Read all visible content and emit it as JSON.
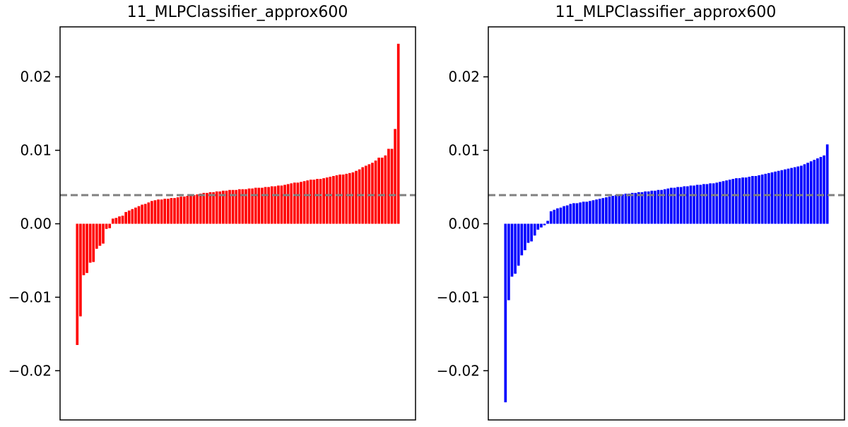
{
  "chart_data": [
    {
      "type": "bar",
      "title": "11_MLPClassifier_approx600",
      "xlabel": "",
      "ylabel": "",
      "ylim": [
        -0.0267,
        0.0268
      ],
      "yticks": [
        -0.02,
        -0.01,
        0.0,
        0.01,
        0.02
      ],
      "ytick_labels": [
        "−0.02",
        "−0.01",
        "0.00",
        "0.01",
        "0.02"
      ],
      "reference_line": 0.0039,
      "bar_color": "#ff0000",
      "reference_color": "#808080",
      "grid": false,
      "values": [
        -0.0165,
        -0.0126,
        -0.007,
        -0.0067,
        -0.0053,
        -0.0052,
        -0.0034,
        -0.003,
        -0.0027,
        -0.0007,
        -0.0006,
        0.0007,
        0.0008,
        0.001,
        0.0011,
        0.0016,
        0.0018,
        0.002,
        0.0022,
        0.0024,
        0.0026,
        0.0027,
        0.0029,
        0.0031,
        0.0032,
        0.0033,
        0.0033,
        0.0034,
        0.0034,
        0.0035,
        0.0035,
        0.0036,
        0.0037,
        0.0037,
        0.0038,
        0.0039,
        0.0039,
        0.004,
        0.0041,
        0.0042,
        0.0042,
        0.0043,
        0.0043,
        0.0044,
        0.0044,
        0.0045,
        0.0045,
        0.0046,
        0.0046,
        0.0046,
        0.0047,
        0.0047,
        0.0047,
        0.0048,
        0.0048,
        0.0049,
        0.0049,
        0.0049,
        0.005,
        0.005,
        0.0051,
        0.0051,
        0.0052,
        0.0052,
        0.0053,
        0.0054,
        0.0055,
        0.0056,
        0.0056,
        0.0057,
        0.0058,
        0.0059,
        0.006,
        0.006,
        0.0061,
        0.0061,
        0.0062,
        0.0063,
        0.0064,
        0.0065,
        0.0066,
        0.0067,
        0.0067,
        0.0068,
        0.0069,
        0.007,
        0.0072,
        0.0074,
        0.0077,
        0.0079,
        0.0081,
        0.0083,
        0.0086,
        0.009,
        0.009,
        0.0093,
        0.0102,
        0.0102,
        0.0129,
        0.0245
      ]
    },
    {
      "type": "bar",
      "title": "11_MLPClassifier_approx600",
      "xlabel": "",
      "ylabel": "",
      "ylim": [
        -0.0267,
        0.0268
      ],
      "yticks": [
        -0.02,
        -0.01,
        0.0,
        0.01,
        0.02
      ],
      "ytick_labels": [
        "−0.02",
        "−0.01",
        "0.00",
        "0.01",
        "0.02"
      ],
      "reference_line": 0.0039,
      "bar_color": "#0000ff",
      "reference_color": "#808080",
      "grid": false,
      "values": [
        -0.0243,
        -0.0104,
        -0.0072,
        -0.0068,
        -0.0057,
        -0.0043,
        -0.0036,
        -0.0026,
        -0.0024,
        -0.0016,
        -0.0008,
        -0.0005,
        -0.0002,
        0.0004,
        0.0017,
        0.0019,
        0.0021,
        0.0022,
        0.0024,
        0.0025,
        0.0027,
        0.0028,
        0.0028,
        0.0029,
        0.003,
        0.003,
        0.0031,
        0.0032,
        0.0033,
        0.0034,
        0.0035,
        0.0036,
        0.0037,
        0.0038,
        0.0039,
        0.004,
        0.004,
        0.0041,
        0.0041,
        0.0042,
        0.0042,
        0.0043,
        0.0043,
        0.0044,
        0.0044,
        0.0045,
        0.0045,
        0.0046,
        0.0046,
        0.0047,
        0.0048,
        0.0049,
        0.0049,
        0.005,
        0.005,
        0.0051,
        0.0051,
        0.0052,
        0.0052,
        0.0053,
        0.0053,
        0.0054,
        0.0054,
        0.0055,
        0.0055,
        0.0056,
        0.0057,
        0.0058,
        0.0059,
        0.006,
        0.0061,
        0.0062,
        0.0062,
        0.0063,
        0.0063,
        0.0064,
        0.0065,
        0.0065,
        0.0066,
        0.0067,
        0.0068,
        0.0069,
        0.007,
        0.0071,
        0.0072,
        0.0073,
        0.0074,
        0.0075,
        0.0076,
        0.0077,
        0.0078,
        0.0079,
        0.0081,
        0.0083,
        0.0085,
        0.0087,
        0.0089,
        0.0091,
        0.0093,
        0.0108
      ]
    }
  ]
}
